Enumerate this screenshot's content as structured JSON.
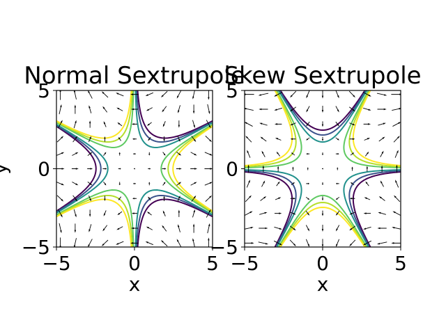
{
  "chart_data": [
    {
      "type": "contour",
      "field": "normal-sextrupole",
      "title": "Normal Sextrupole",
      "xlabel": "x",
      "ylabel": "y",
      "xlim": [
        -5,
        5
      ],
      "ylim": [
        -5,
        5
      ],
      "xticks": [
        -5,
        0,
        5
      ],
      "yticks": [
        -5,
        0,
        5
      ],
      "xtick_labels": [
        "−5",
        "0",
        "5"
      ],
      "ytick_labels": [
        "−5",
        "0",
        "5"
      ],
      "contour_levels": [
        -15,
        -10,
        -5,
        5,
        10,
        15
      ],
      "level_colors": [
        "#440154",
        "#3b528b",
        "#21918c",
        "#5ec962",
        "#b5de2b",
        "#fde725"
      ],
      "quiver": true,
      "grid": false
    },
    {
      "type": "contour",
      "field": "skew-sextrupole",
      "title": "Skew Sextrupole",
      "xlabel": "x",
      "ylabel": "",
      "xlim": [
        -5,
        5
      ],
      "ylim": [
        -5,
        5
      ],
      "xticks": [
        -5,
        0,
        5
      ],
      "yticks": [
        -5,
        0,
        5
      ],
      "xtick_labels": [
        "−5",
        "0",
        "5"
      ],
      "ytick_labels": [
        "−5",
        "0",
        "5"
      ],
      "contour_levels": [
        -15,
        -10,
        -5,
        5,
        10,
        15
      ],
      "level_colors": [
        "#440154",
        "#3b528b",
        "#21918c",
        "#5ec962",
        "#b5de2b",
        "#fde725"
      ],
      "quiver": true,
      "grid": false
    }
  ]
}
